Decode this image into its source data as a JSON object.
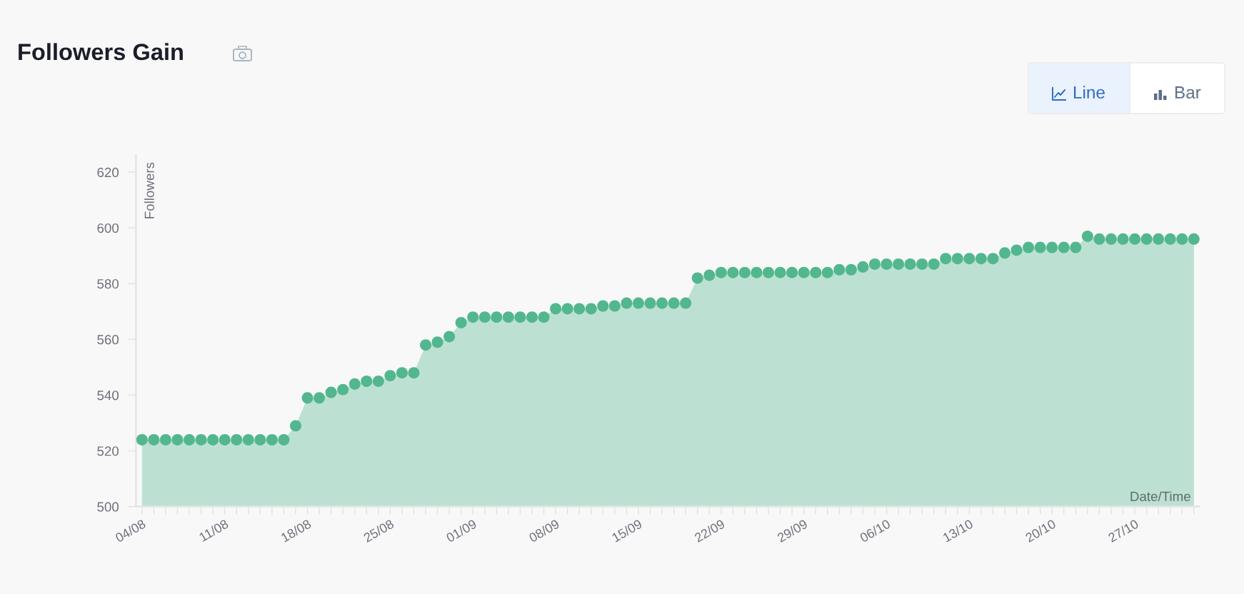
{
  "chart_data": {
    "type": "area",
    "title": "Followers Gain",
    "ylabel": "Followers",
    "xlabel": "Date/Time",
    "annotations": [
      "Line",
      "Bar"
    ],
    "categories": [
      "04/08",
      null,
      null,
      null,
      null,
      null,
      null,
      "11/08",
      null,
      null,
      null,
      null,
      null,
      null,
      "18/08",
      null,
      null,
      null,
      null,
      null,
      null,
      "25/08",
      null,
      null,
      null,
      null,
      null,
      null,
      "01/09",
      null,
      null,
      null,
      null,
      null,
      null,
      "08/09",
      null,
      null,
      null,
      null,
      null,
      null,
      "15/09",
      null,
      null,
      null,
      null,
      null,
      null,
      "22/09",
      null,
      null,
      null,
      null,
      null,
      null,
      "29/09",
      null,
      null,
      null,
      null,
      null,
      null,
      "06/10",
      null,
      null,
      null,
      null,
      null,
      null,
      "13/10",
      null,
      null,
      null,
      null,
      null,
      null,
      "20/10",
      null,
      null,
      null,
      null,
      null,
      null,
      "27/10",
      null,
      null,
      null,
      null,
      null
    ],
    "series": [
      {
        "color": "#52b78e",
        "values": [
          524,
          524,
          524,
          524,
          524,
          524,
          524,
          524,
          524,
          524,
          524,
          524,
          524,
          529,
          539,
          539,
          541,
          542,
          544,
          545,
          545,
          547,
          548,
          548,
          558,
          559,
          561,
          566,
          568,
          568,
          568,
          568,
          568,
          568,
          568,
          571,
          571,
          571,
          571,
          572,
          572,
          573,
          573,
          573,
          573,
          573,
          573,
          582,
          583,
          584,
          584,
          584,
          584,
          584,
          584,
          584,
          584,
          584,
          584,
          585,
          585,
          586,
          587,
          587,
          587,
          587,
          587,
          587,
          589,
          589,
          589,
          589,
          589,
          591,
          592,
          593,
          593,
          593,
          593,
          593,
          597,
          596,
          596,
          596,
          596,
          596,
          596,
          596,
          596,
          596
        ]
      }
    ],
    "ylim": [
      500,
      626
    ],
    "yticks": [
      500,
      520,
      540,
      560,
      580,
      600,
      620
    ],
    "marker": "circle",
    "grid": false
  }
}
